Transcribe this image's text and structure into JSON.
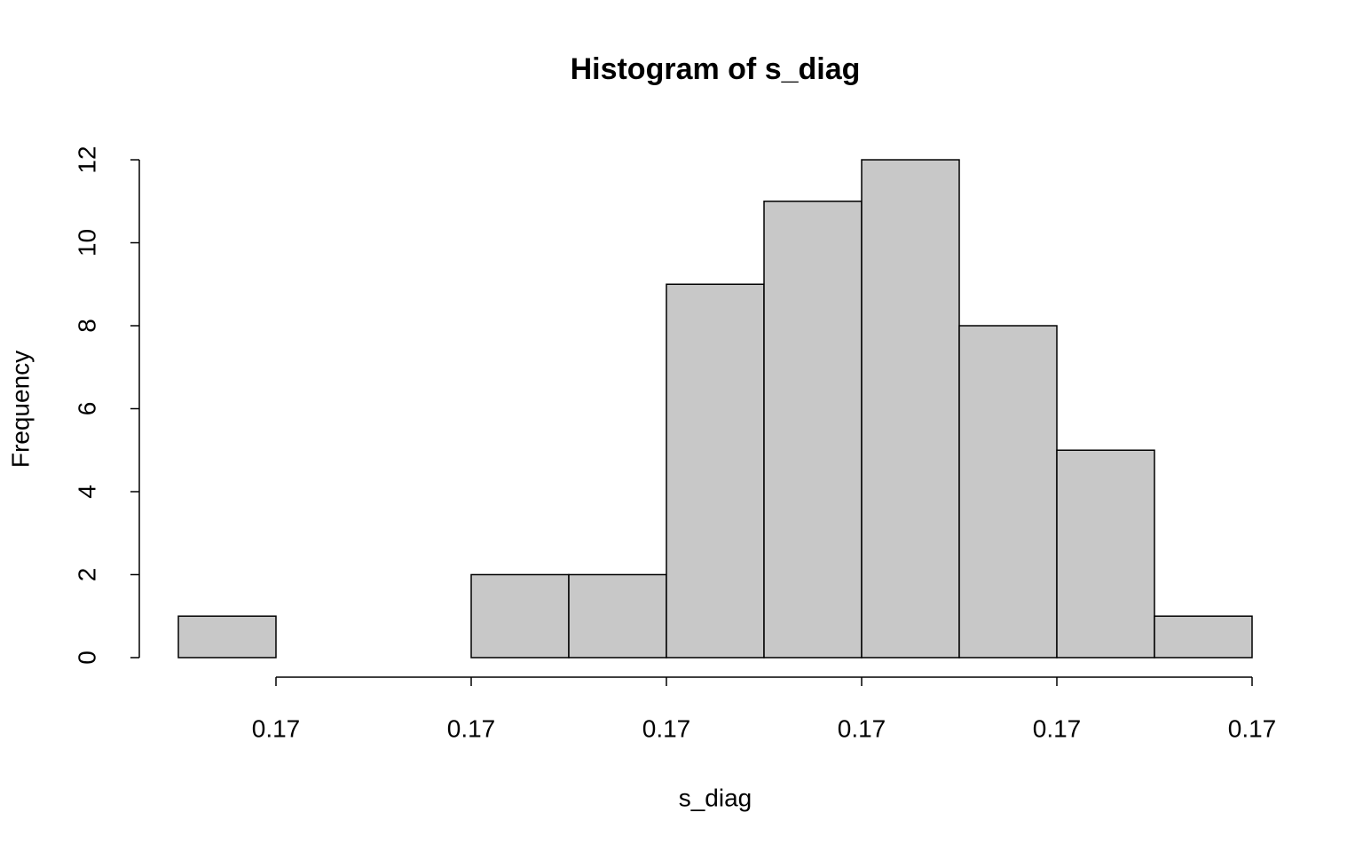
{
  "chart_data": {
    "type": "histogram",
    "title": "Histogram of s_diag",
    "x_label": "s_diag",
    "y_label": "Frequency",
    "bins": [
      0.16989,
      0.1699,
      0.16991,
      0.16992,
      0.16993,
      0.16994,
      0.16995,
      0.16996,
      0.16997,
      0.16998,
      0.16999,
      0.17
    ],
    "values": [
      1,
      0,
      0,
      2,
      2,
      9,
      11,
      12,
      8,
      5,
      1
    ],
    "color": "#c8c8c8",
    "xlim": [
      0.169886,
      0.170004
    ],
    "xticks": [
      {
        "value": 0.1699,
        "label": "0.17"
      },
      {
        "value": 0.16992,
        "label": "0.17"
      },
      {
        "value": 0.16994,
        "label": "0.17"
      },
      {
        "value": 0.16996,
        "label": "0.17"
      },
      {
        "value": 0.16998,
        "label": "0.17"
      },
      0.17
    ],
    "ylim": [
      -0.48,
      12.48
    ],
    "yticks": [
      0,
      2,
      4,
      6,
      8,
      10,
      12
    ]
  }
}
